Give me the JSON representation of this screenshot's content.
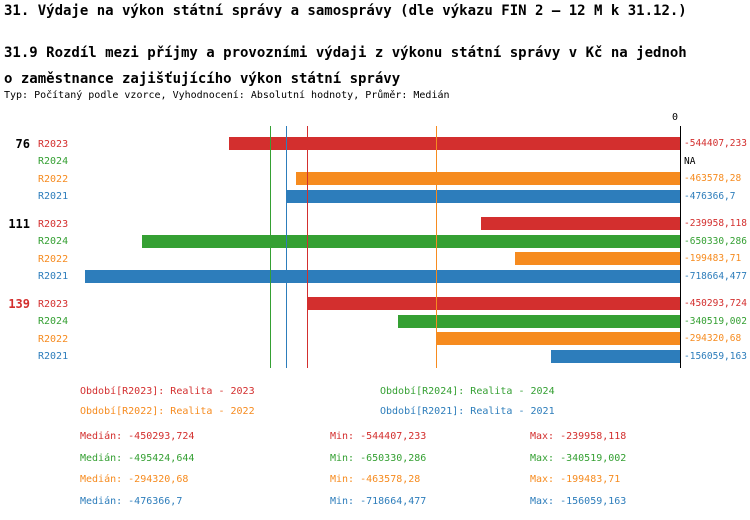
{
  "header": {
    "title": "31. Výdaje na výkon státní správy a samosprávy (dle výkazu FIN 2 – 12 M k 31.12.)",
    "subtitle": "31.9 Rozdíl mezi příjmy a provozními výdaji z výkonu státní správy v Kč na jednoho zaměstnance zajišťujícího výkon státní správy",
    "meta": "Typ: Počítaný podle vzorce, Vyhodnocení: Absolutní hodnoty, Průměr: Medián"
  },
  "colors": {
    "series": {
      "R2023": "#d32f2e",
      "R2024": "#35a033",
      "R2022": "#f68b1f",
      "R2021": "#2d7dbb"
    },
    "axis": "#000000",
    "text": "#000000",
    "group_highlight": "#d32f2e"
  },
  "chart_data": {
    "type": "bar",
    "orientation": "horizontal",
    "title": "31.9 Rozdíl mezi příjmy a provozními výdaji z výkonu státní správy v Kč na jednoho zaměstnance zajišťujícího výkon státní správy",
    "xlim": [
      -725000,
      0
    ],
    "zero_label": "0",
    "grid": false,
    "series_order": [
      "R2023",
      "R2024",
      "R2022",
      "R2021"
    ],
    "groups": [
      {
        "label": "76",
        "label_color": "#000000",
        "rows": [
          {
            "series": "R2023",
            "value": -544407.233,
            "value_label": "-544407,233"
          },
          {
            "series": "R2024",
            "value": null,
            "value_label": "NA"
          },
          {
            "series": "R2022",
            "value": -463578.28,
            "value_label": "-463578,28"
          },
          {
            "series": "R2021",
            "value": -476366.7,
            "value_label": "-476366,7"
          }
        ]
      },
      {
        "label": "111",
        "label_color": "#000000",
        "rows": [
          {
            "series": "R2023",
            "value": -239958.118,
            "value_label": "-239958,118"
          },
          {
            "series": "R2024",
            "value": -650330.286,
            "value_label": "-650330,286"
          },
          {
            "series": "R2022",
            "value": -199483.71,
            "value_label": "-199483,71"
          },
          {
            "series": "R2021",
            "value": -718664.477,
            "value_label": "-718664,477"
          }
        ]
      },
      {
        "label": "139",
        "label_color": "#d32f2e",
        "rows": [
          {
            "series": "R2023",
            "value": -450293.724,
            "value_label": "-450293,724"
          },
          {
            "series": "R2024",
            "value": -340519.002,
            "value_label": "-340519,002"
          },
          {
            "series": "R2022",
            "value": -294320.68,
            "value_label": "-294320,68"
          },
          {
            "series": "R2021",
            "value": -156059.163,
            "value_label": "-156059,163"
          }
        ]
      }
    ],
    "median_lines": [
      {
        "series": "R2024",
        "value": -495424.644
      },
      {
        "series": "R2021",
        "value": -476366.7
      },
      {
        "series": "R2023",
        "value": -450293.724
      },
      {
        "series": "R2022",
        "value": -294320.68
      }
    ],
    "legend": [
      {
        "series": "R2023",
        "label": "Období[R2023]: Realita - 2023",
        "col": 0,
        "row": 0
      },
      {
        "series": "R2024",
        "label": "Období[R2024]: Realita - 2024",
        "col": 1,
        "row": 0
      },
      {
        "series": "R2022",
        "label": "Období[R2022]: Realita - 2022",
        "col": 0,
        "row": 1
      },
      {
        "series": "R2021",
        "label": "Období[R2021]: Realita - 2021",
        "col": 1,
        "row": 1
      }
    ],
    "stats": [
      {
        "series": "R2023",
        "median": "Medián: -450293,724",
        "min": "Min: -544407,233",
        "max": "Max: -239958,118"
      },
      {
        "series": "R2024",
        "median": "Medián: -495424,644",
        "min": "Min: -650330,286",
        "max": "Max: -340519,002"
      },
      {
        "series": "R2022",
        "median": "Medián: -294320,68",
        "min": "Min: -463578,28",
        "max": "Max: -199483,71"
      },
      {
        "series": "R2021",
        "median": "Medián: -476366,7",
        "min": "Min: -718664,477",
        "max": "Max: -156059,163"
      }
    ]
  }
}
